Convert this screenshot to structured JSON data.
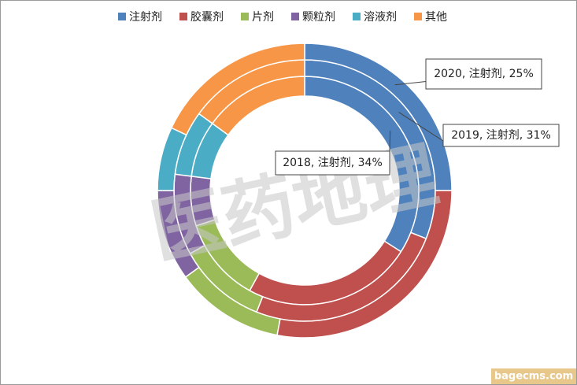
{
  "chart_data": {
    "type": "multi_donut",
    "categories": [
      "注射剂",
      "胶囊剂",
      "片剂",
      "颗粒剂",
      "溶液剂",
      "其他"
    ],
    "colors": [
      "#4f81bd",
      "#c0504d",
      "#9bbb59",
      "#8064a2",
      "#4bacc6",
      "#f79646"
    ],
    "series": [
      {
        "name": "2018",
        "values": [
          34,
          24,
          12,
          7,
          8,
          15
        ],
        "value_labels": [
          "2018, 注射剂, 34%",
          null,
          null,
          null,
          null,
          null
        ]
      },
      {
        "name": "2019",
        "values": [
          31,
          25,
          11,
          10,
          8,
          15
        ],
        "value_labels": [
          "2019, 注射剂, 31%",
          null,
          null,
          null,
          null,
          null
        ]
      },
      {
        "name": "2020",
        "values": [
          25,
          28,
          12,
          10,
          7,
          18
        ],
        "value_labels": [
          "2020, 注射剂, 25%",
          null,
          null,
          null,
          null,
          null
        ]
      }
    ],
    "legend": "top"
  },
  "watermarks": [
    "医药地理",
    "bagecms.com"
  ]
}
